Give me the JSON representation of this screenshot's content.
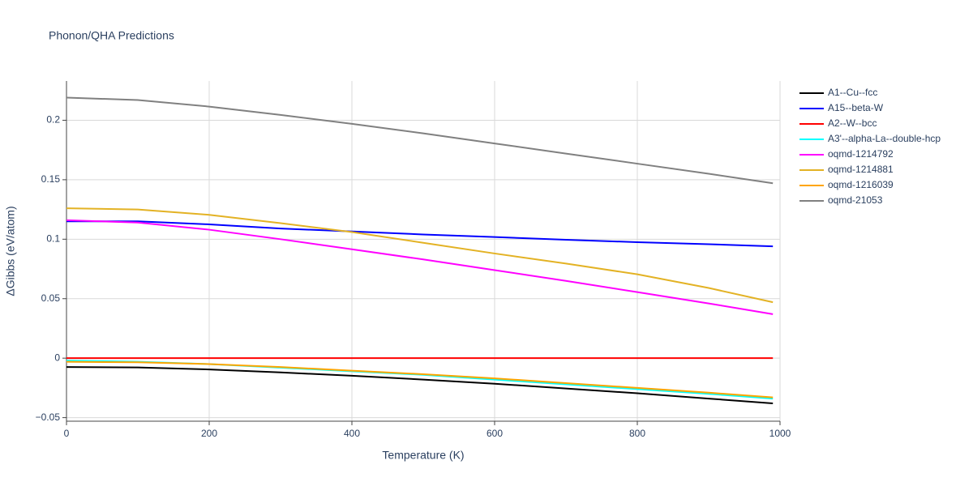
{
  "chart_data": {
    "type": "line",
    "title": "Phonon/QHA Predictions",
    "x_label": "Temperature (K)",
    "y_label": "ΔGibbs (eV/atom)",
    "x": [
      0,
      100,
      200,
      300,
      400,
      500,
      600,
      700,
      800,
      900,
      990
    ],
    "series": [
      {
        "name": "A1--Cu--fcc",
        "color": "#000000",
        "values": [
          -0.0075,
          -0.0078,
          -0.0095,
          -0.012,
          -0.0148,
          -0.018,
          -0.0215,
          -0.0255,
          -0.0295,
          -0.034,
          -0.038
        ]
      },
      {
        "name": "A15--beta-W",
        "color": "#0000ff",
        "values": [
          0.115,
          0.115,
          0.1125,
          0.109,
          0.1065,
          0.104,
          0.1018,
          0.0995,
          0.0975,
          0.0958,
          0.094
        ]
      },
      {
        "name": "A2--W--bcc",
        "color": "#ff0000",
        "values": [
          0,
          0,
          0,
          0,
          0,
          0,
          0,
          0,
          0,
          0,
          0
        ]
      },
      {
        "name": "A3'--alpha-La--double-hcp",
        "color": "#00ffff",
        "values": [
          -0.002,
          -0.003,
          -0.005,
          -0.008,
          -0.011,
          -0.014,
          -0.018,
          -0.022,
          -0.026,
          -0.03,
          -0.034
        ]
      },
      {
        "name": "oqmd-1214792",
        "color": "#ff00ff",
        "values": [
          0.116,
          0.114,
          0.108,
          0.1,
          0.0915,
          0.083,
          0.074,
          0.065,
          0.0555,
          0.046,
          0.037
        ]
      },
      {
        "name": "oqmd-1214881",
        "color": "#e3b224",
        "values": [
          0.126,
          0.125,
          0.1205,
          0.1135,
          0.106,
          0.097,
          0.088,
          0.0795,
          0.0705,
          0.059,
          0.047
        ]
      },
      {
        "name": "oqmd-1216039",
        "color": "#ffa500",
        "values": [
          -0.003,
          -0.0035,
          -0.005,
          -0.0075,
          -0.0105,
          -0.0135,
          -0.017,
          -0.021,
          -0.025,
          -0.029,
          -0.033
        ]
      },
      {
        "name": "oqmd-21053",
        "color": "#808080",
        "values": [
          0.219,
          0.217,
          0.2115,
          0.2045,
          0.197,
          0.189,
          0.1805,
          0.172,
          0.1635,
          0.155,
          0.147
        ]
      }
    ],
    "xlim": [
      0,
      1000
    ],
    "xticks": [
      0,
      200,
      400,
      600,
      800,
      1000
    ],
    "ylim": [
      -0.053,
      0.233
    ],
    "yticks": [
      {
        "value": -0.05,
        "label": "−0.05"
      },
      0,
      0.05,
      0.1,
      0.15,
      0.2
    ],
    "grid": true,
    "legend": "right"
  }
}
